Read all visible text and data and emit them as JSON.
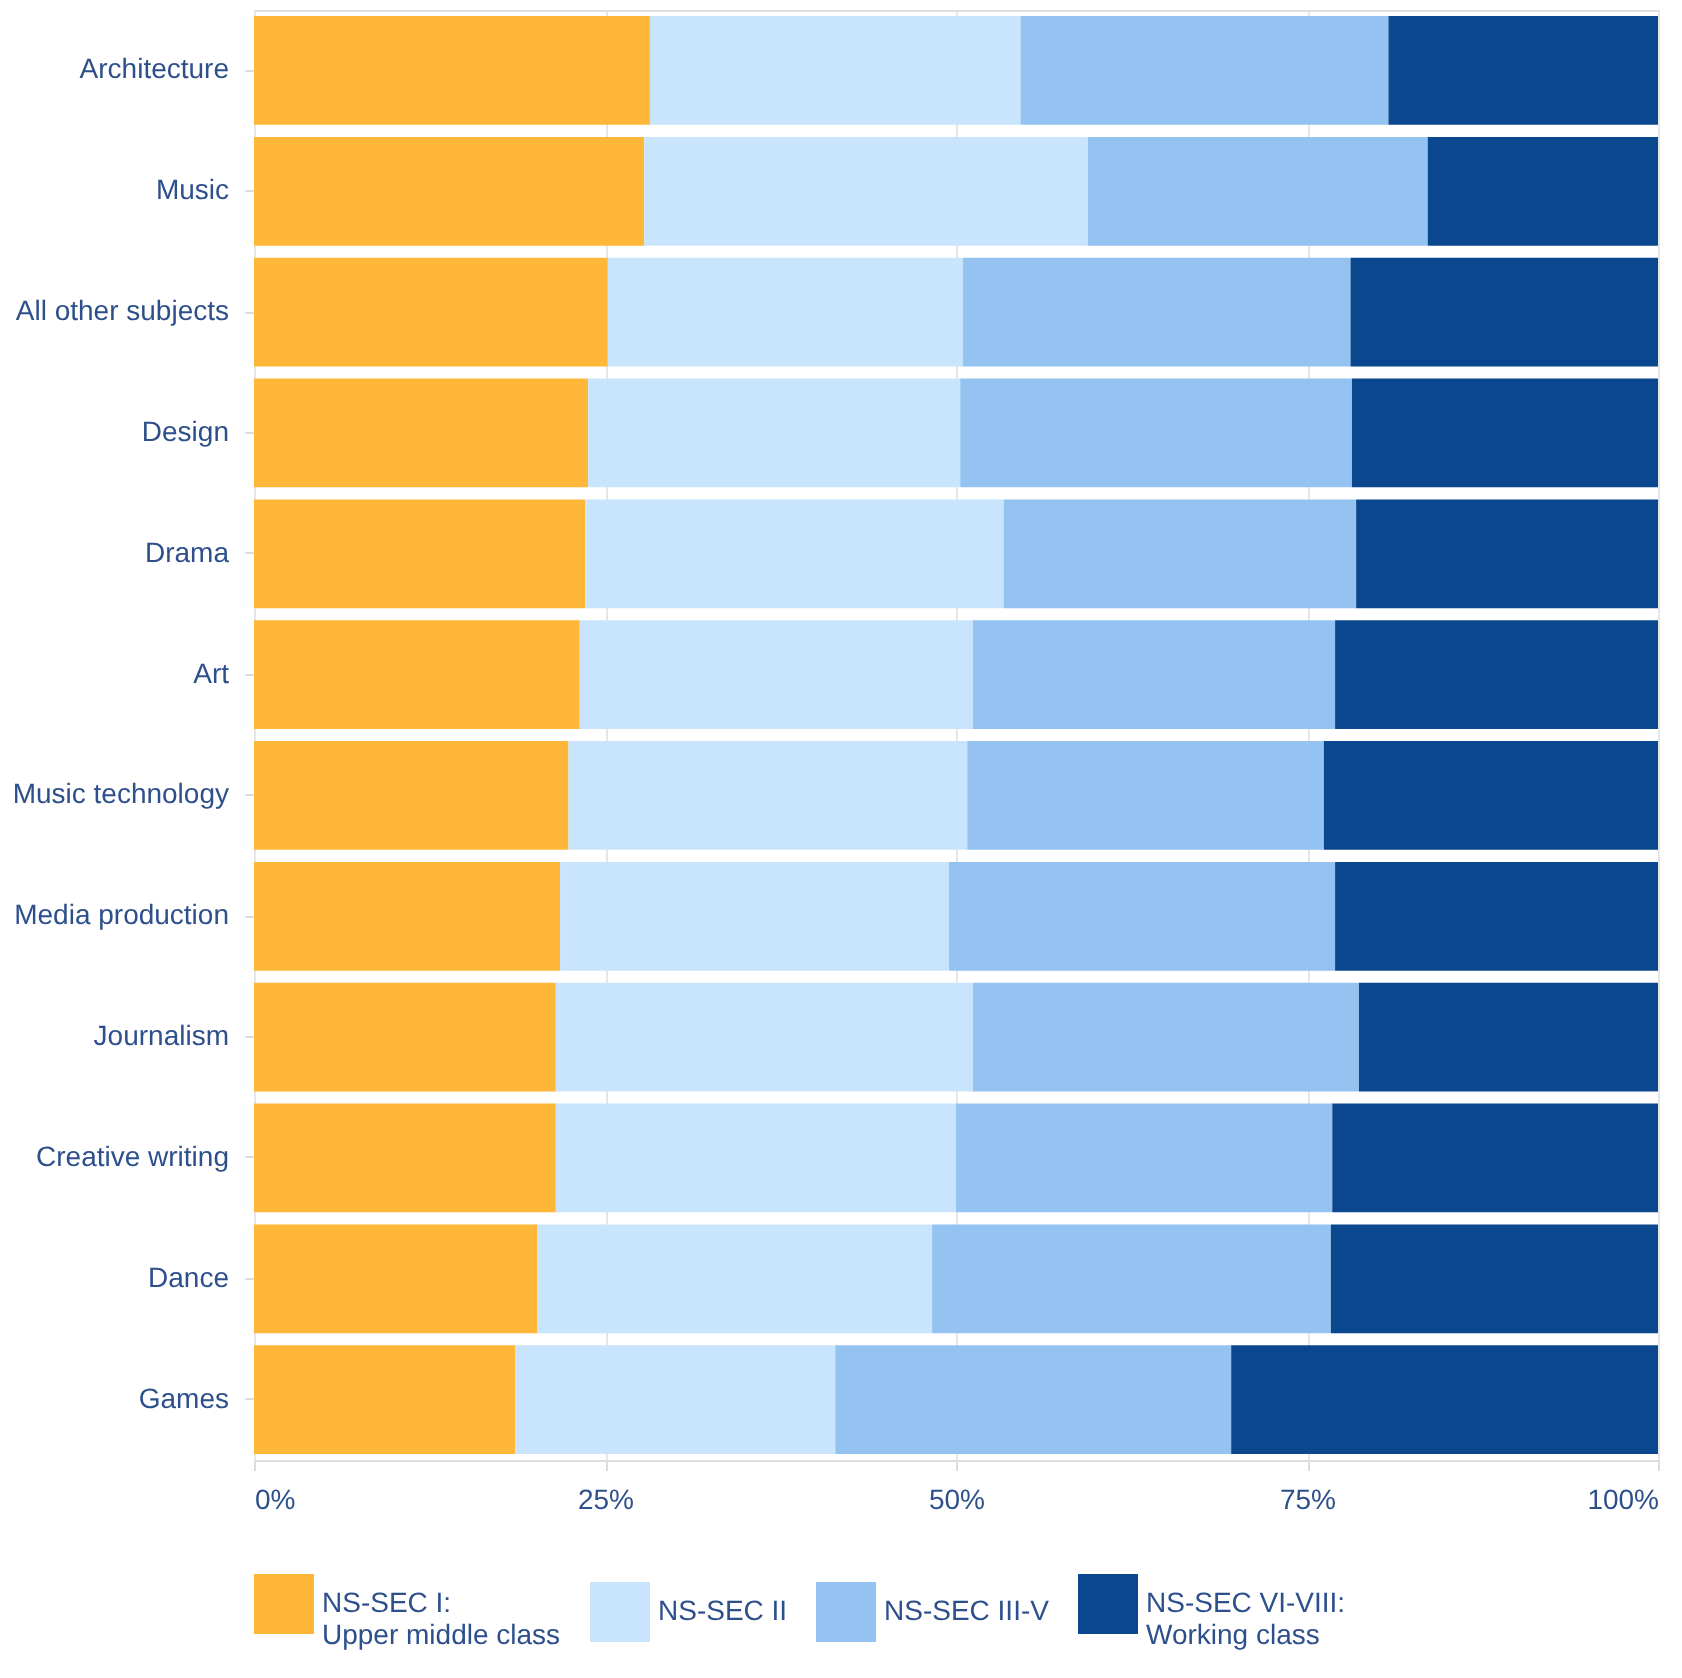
{
  "chart_data": {
    "type": "bar",
    "orientation": "horizontal",
    "stacked": true,
    "categories": [
      "Architecture",
      "Music",
      "All other subjects",
      "Design",
      "Drama",
      "Art",
      "Music technology",
      "Media production",
      "Journalism",
      "Creative writing",
      "Dance",
      "Games"
    ],
    "series": [
      {
        "name": "NS-SEC I:\nUpper middle class",
        "color": "#ffb739",
        "values": [
          28.2,
          27.8,
          25.2,
          23.8,
          23.6,
          23.2,
          22.4,
          21.8,
          21.5,
          21.5,
          20.2,
          18.6
        ]
      },
      {
        "name": "NS-SEC II",
        "color": "#c9e5fd",
        "values": [
          26.4,
          31.6,
          25.3,
          26.5,
          29.8,
          28.0,
          28.4,
          27.7,
          29.7,
          28.5,
          28.1,
          22.8
        ]
      },
      {
        "name": "NS-SEC III-V",
        "color": "#94c3f2",
        "values": [
          26.2,
          24.2,
          27.6,
          27.9,
          25.1,
          25.8,
          25.4,
          27.5,
          27.5,
          26.8,
          28.4,
          28.2
        ]
      },
      {
        "name": "NS-SEC VI-VIII:\nWorking class",
        "color": "#0b478e",
        "values": [
          19.2,
          16.4,
          21.9,
          21.8,
          21.5,
          23.0,
          23.8,
          23.0,
          21.3,
          23.2,
          23.3,
          30.4
        ]
      }
    ],
    "xlim": [
      0,
      100
    ],
    "xticks": [
      {
        "value": 0,
        "label": "0%"
      },
      {
        "value": 25,
        "label": "25%"
      },
      {
        "value": 50,
        "label": "50%"
      },
      {
        "value": 75,
        "label": "75%"
      },
      {
        "value": 100,
        "label": "100%"
      }
    ],
    "grid": "x",
    "legend": "bottom"
  }
}
